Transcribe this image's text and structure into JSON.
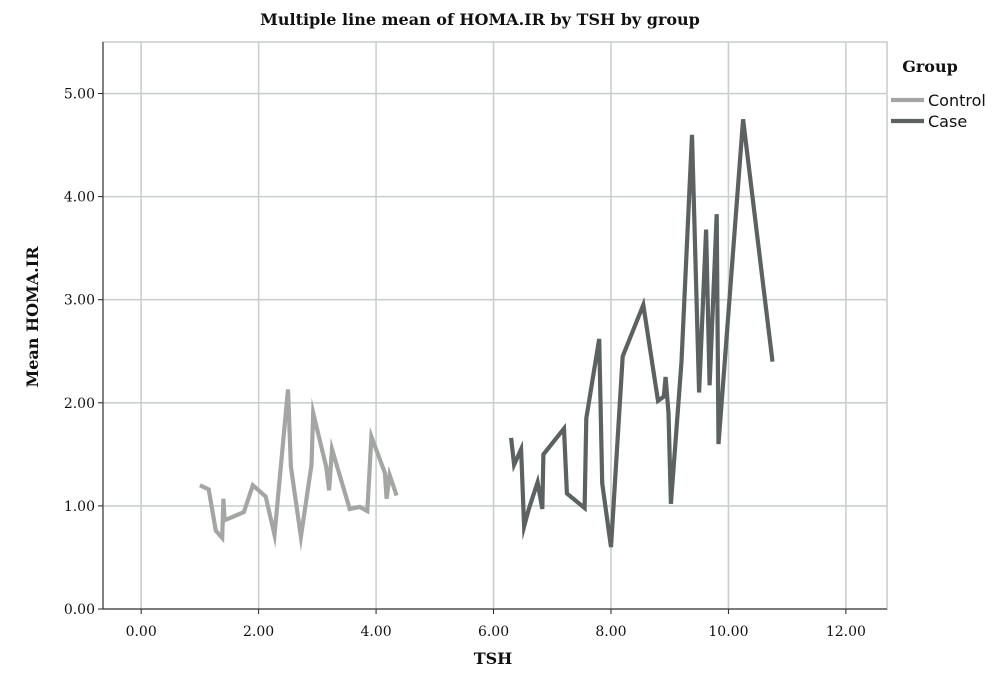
{
  "chart_data": {
    "type": "line",
    "title": "Multiple line mean of HOMA.IR by TSH by group",
    "xlabel": "TSH",
    "ylabel": "Mean HOMA.IR",
    "xlim": [
      -0.65,
      12.7
    ],
    "ylim": [
      0,
      5.5
    ],
    "xticks": [
      "0.00",
      "2.00",
      "4.00",
      "6.00",
      "8.00",
      "10.00",
      "12.00"
    ],
    "yticks": [
      "0.00",
      "1.00",
      "2.00",
      "3.00",
      "4.00",
      "5.00"
    ],
    "grid": true,
    "legend": {
      "title": "Group",
      "position": "top-right"
    },
    "series": [
      {
        "name": "Control",
        "color": "#a3a6a3",
        "points": [
          [
            1.0,
            1.2
          ],
          [
            1.15,
            1.16
          ],
          [
            1.27,
            0.76
          ],
          [
            1.38,
            0.69
          ],
          [
            1.4,
            1.07
          ],
          [
            1.42,
            0.86
          ],
          [
            1.75,
            0.94
          ],
          [
            1.9,
            1.2
          ],
          [
            2.12,
            1.09
          ],
          [
            2.27,
            0.72
          ],
          [
            2.5,
            2.13
          ],
          [
            2.55,
            1.38
          ],
          [
            2.72,
            0.7
          ],
          [
            2.9,
            1.4
          ],
          [
            2.93,
            1.9
          ],
          [
            3.15,
            1.38
          ],
          [
            3.2,
            1.15
          ],
          [
            3.25,
            1.55
          ],
          [
            3.55,
            0.97
          ],
          [
            3.72,
            0.99
          ],
          [
            3.85,
            0.95
          ],
          [
            3.92,
            1.67
          ],
          [
            4.15,
            1.32
          ],
          [
            4.18,
            1.07
          ],
          [
            4.23,
            1.3
          ],
          [
            4.35,
            1.1
          ]
        ]
      },
      {
        "name": "Case",
        "color": "#5c6161",
        "points": [
          [
            6.3,
            1.66
          ],
          [
            6.35,
            1.4
          ],
          [
            6.47,
            1.55
          ],
          [
            6.52,
            0.8
          ],
          [
            6.6,
            0.97
          ],
          [
            6.75,
            1.23
          ],
          [
            6.83,
            0.97
          ],
          [
            6.85,
            1.5
          ],
          [
            7.2,
            1.75
          ],
          [
            7.25,
            1.12
          ],
          [
            7.55,
            0.98
          ],
          [
            7.58,
            1.85
          ],
          [
            7.8,
            2.62
          ],
          [
            7.85,
            1.22
          ],
          [
            8.0,
            0.6
          ],
          [
            8.2,
            2.45
          ],
          [
            8.55,
            2.95
          ],
          [
            8.8,
            2.02
          ],
          [
            8.9,
            2.06
          ],
          [
            8.93,
            2.25
          ],
          [
            8.98,
            1.9
          ],
          [
            9.02,
            1.02
          ],
          [
            9.2,
            2.4
          ],
          [
            9.38,
            4.6
          ],
          [
            9.5,
            2.1
          ],
          [
            9.62,
            3.68
          ],
          [
            9.68,
            2.17
          ],
          [
            9.8,
            3.83
          ],
          [
            9.83,
            1.6
          ],
          [
            10.25,
            4.75
          ],
          [
            10.6,
            3.1
          ],
          [
            10.75,
            2.4
          ]
        ]
      }
    ]
  }
}
